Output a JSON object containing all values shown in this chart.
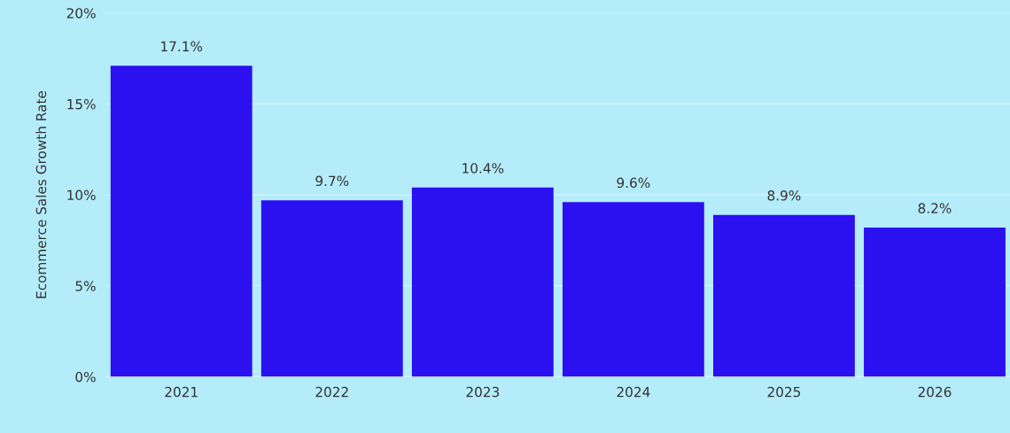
{
  "chart_data": {
    "type": "bar",
    "ylabel": "Ecommerce Sales Growth Rate",
    "categories": [
      "2021",
      "2022",
      "2023",
      "2024",
      "2025",
      "2026"
    ],
    "values": [
      17.1,
      9.7,
      10.4,
      9.6,
      8.9,
      8.2
    ],
    "value_labels": [
      "17.1%",
      "9.7%",
      "10.4%",
      "9.6%",
      "8.9%",
      "8.2%"
    ],
    "color": "#2b10f0",
    "ylim": [
      0,
      20
    ],
    "yticks": [
      {
        "value": 0,
        "label": "0%"
      },
      {
        "value": 5,
        "label": "5%"
      },
      {
        "value": 10,
        "label": "10%"
      },
      {
        "value": 15,
        "label": "15%"
      },
      {
        "value": 20,
        "label": "20%"
      }
    ],
    "grid": "y"
  }
}
